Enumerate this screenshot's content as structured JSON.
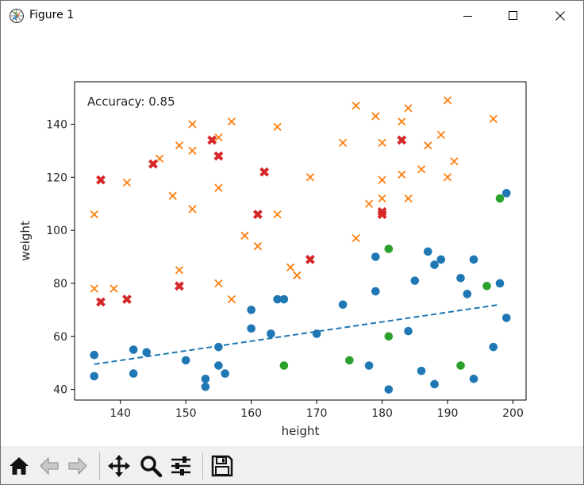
{
  "window": {
    "title": "Figure 1"
  },
  "icons": {
    "app": "figure-icon",
    "minimize": "minimize-icon",
    "maximize": "maximize-icon",
    "close": "close-icon",
    "home": "home-icon",
    "back": "back-arrow-icon",
    "forward": "forward-arrow-icon",
    "pan": "pan-icon",
    "zoom": "zoom-icon",
    "configure": "configure-subplots-icon",
    "save": "save-icon"
  },
  "chart_data": {
    "type": "scatter",
    "annotation": "Accuracy: 0.85",
    "xlabel": "height",
    "ylabel": "weight",
    "xlim": [
      133,
      202
    ],
    "ylim": [
      36,
      156
    ],
    "xticks": [
      140,
      150,
      160,
      170,
      180,
      190,
      200
    ],
    "yticks": [
      40,
      60,
      80,
      100,
      120,
      140
    ],
    "grid": false,
    "colors": {
      "blue": "#1f77b4",
      "orange": "#ff7f0e",
      "green": "#2ca02c",
      "red": "#d62728"
    },
    "series": [
      {
        "marker": "o",
        "color": "#1f77b4",
        "points": [
          [
            136,
            53
          ],
          [
            136,
            45
          ],
          [
            142,
            55
          ],
          [
            142,
            46
          ],
          [
            144,
            54
          ],
          [
            150,
            51
          ],
          [
            153,
            44
          ],
          [
            153,
            41
          ],
          [
            155,
            56
          ],
          [
            155,
            49
          ],
          [
            156,
            46
          ],
          [
            160,
            70
          ],
          [
            160,
            63
          ],
          [
            163,
            61
          ],
          [
            164,
            74
          ],
          [
            165,
            74
          ],
          [
            170,
            61
          ],
          [
            174,
            72
          ],
          [
            178,
            49
          ],
          [
            179,
            90
          ],
          [
            179,
            77
          ],
          [
            181,
            40
          ],
          [
            184,
            62
          ],
          [
            185,
            81
          ],
          [
            186,
            47
          ],
          [
            187,
            92
          ],
          [
            188,
            87
          ],
          [
            188,
            42
          ],
          [
            189,
            89
          ],
          [
            192,
            82
          ],
          [
            193,
            76
          ],
          [
            194,
            89
          ],
          [
            194,
            44
          ],
          [
            197,
            56
          ],
          [
            198,
            80
          ],
          [
            199,
            114
          ],
          [
            199,
            67
          ]
        ]
      },
      {
        "marker": "o",
        "color": "#2ca02c",
        "points": [
          [
            165,
            49
          ],
          [
            175,
            51
          ],
          [
            181,
            93
          ],
          [
            181,
            60
          ],
          [
            192,
            49
          ],
          [
            196,
            79
          ],
          [
            198,
            112
          ]
        ]
      },
      {
        "marker": "x",
        "color": "#ff7f0e",
        "points": [
          [
            136,
            106
          ],
          [
            136,
            78
          ],
          [
            139,
            78
          ],
          [
            141,
            118
          ],
          [
            146,
            127
          ],
          [
            148,
            113
          ],
          [
            149,
            132
          ],
          [
            149,
            85
          ],
          [
            151,
            140
          ],
          [
            151,
            130
          ],
          [
            151,
            108
          ],
          [
            155,
            135
          ],
          [
            155,
            116
          ],
          [
            155,
            80
          ],
          [
            157,
            141
          ],
          [
            157,
            74
          ],
          [
            159,
            98
          ],
          [
            161,
            94
          ],
          [
            164,
            139
          ],
          [
            164,
            106
          ],
          [
            166,
            86
          ],
          [
            167,
            83
          ],
          [
            169,
            120
          ],
          [
            174,
            133
          ],
          [
            176,
            147
          ],
          [
            176,
            97
          ],
          [
            178,
            110
          ],
          [
            179,
            143
          ],
          [
            180,
            133
          ],
          [
            180,
            119
          ],
          [
            180,
            112
          ],
          [
            183,
            141
          ],
          [
            183,
            121
          ],
          [
            184,
            146
          ],
          [
            184,
            112
          ],
          [
            186,
            123
          ],
          [
            187,
            132
          ],
          [
            189,
            136
          ],
          [
            190,
            149
          ],
          [
            190,
            120
          ],
          [
            191,
            126
          ],
          [
            197,
            142
          ]
        ]
      },
      {
        "marker": "X",
        "color": "#d62728",
        "points": [
          [
            137,
            119
          ],
          [
            137,
            73
          ],
          [
            141,
            74
          ],
          [
            145,
            125
          ],
          [
            149,
            79
          ],
          [
            154,
            134
          ],
          [
            155,
            128
          ],
          [
            162,
            122
          ],
          [
            161,
            106
          ],
          [
            169,
            89
          ],
          [
            180,
            107
          ],
          [
            180,
            106
          ],
          [
            183,
            134
          ]
        ]
      }
    ],
    "regression_line": {
      "style": "dashed",
      "color": "#1f77b4",
      "x": [
        136,
        198
      ],
      "y": [
        49.5,
        72
      ]
    }
  }
}
